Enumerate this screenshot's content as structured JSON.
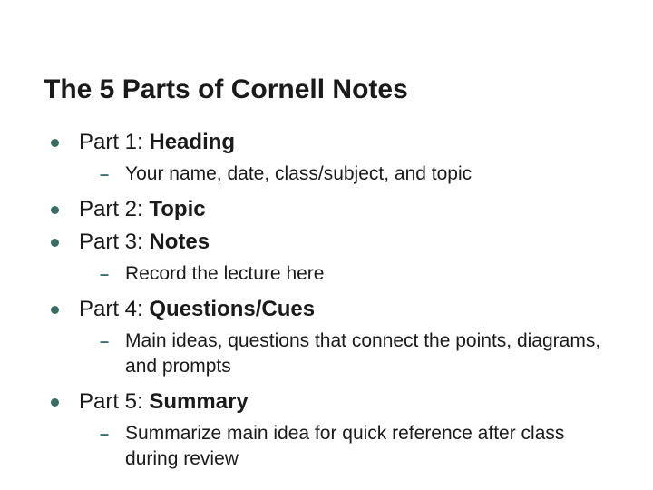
{
  "title": "The 5 Parts of Cornell Notes",
  "colors": {
    "bullet": "#376d62",
    "text": "#1a1a1a",
    "background": "#ffffff"
  },
  "typography": {
    "title_fontsize": 30,
    "l1_fontsize": 24,
    "l2_fontsize": 21,
    "font_family": "Arial"
  },
  "items": [
    {
      "prefix": "Part 1: ",
      "bold": "Heading",
      "sub": [
        "Your name, date, class/subject, and topic"
      ]
    },
    {
      "prefix": "Part 2: ",
      "bold": "Topic",
      "sub": []
    },
    {
      "prefix": "Part 3: ",
      "bold": "Notes",
      "sub": [
        "Record the lecture here"
      ]
    },
    {
      "prefix": "Part 4: ",
      "bold": "Questions/Cues",
      "sub": [
        "Main ideas, questions that connect the points, diagrams, and prompts"
      ]
    },
    {
      "prefix": "Part 5: ",
      "bold": "Summary",
      "sub": [
        "Summarize main idea for quick reference after class during review"
      ]
    }
  ]
}
